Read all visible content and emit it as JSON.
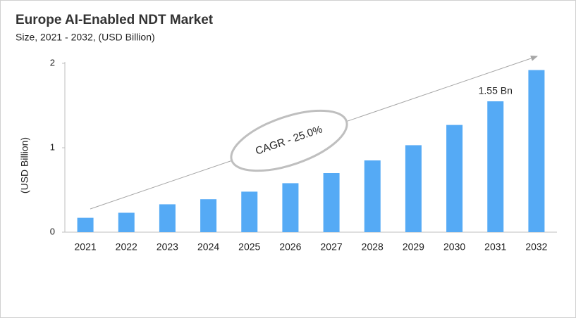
{
  "chart_data": {
    "type": "bar",
    "title": "Europe AI-Enabled NDT Market",
    "subtitle": "Size, 2021 - 2032, (USD Billion)",
    "y_label": "(USD Billion)",
    "categories": [
      "2021",
      "2022",
      "2023",
      "2024",
      "2025",
      "2026",
      "2027",
      "2028",
      "2029",
      "2030",
      "2031",
      "2032"
    ],
    "values": [
      0.17,
      0.23,
      0.33,
      0.39,
      0.48,
      0.58,
      0.7,
      0.85,
      1.03,
      1.27,
      1.55,
      1.92
    ],
    "value_labels": [
      null,
      null,
      null,
      null,
      null,
      null,
      null,
      null,
      null,
      null,
      "1.55 Bn",
      null
    ],
    "color": "#55aaf5",
    "ylim": [
      0,
      2
    ],
    "yticks": [
      0,
      1,
      2
    ],
    "grid": false,
    "annotation": "CAGR - 25.0%"
  }
}
